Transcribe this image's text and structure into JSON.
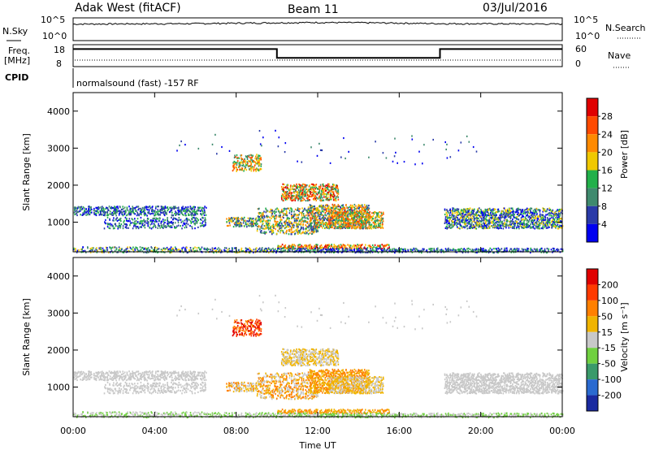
{
  "header": {
    "station": "Adak West (fitACF)",
    "beam": "Beam 11",
    "date": "03/Jul/2016"
  },
  "nsky_panel": {
    "left_label": "N.Sky",
    "right_label": "N.Search",
    "tick_top": "10^5",
    "tick_bottom": "10^0"
  },
  "freq_panel": {
    "left_label_line1": "Freq.",
    "left_label_line2": "[MHz]",
    "left_tick_top": "18",
    "left_tick_bottom": "8",
    "right_label": "Nave",
    "right_tick_top": "60",
    "right_tick_bottom": "0"
  },
  "cpid_panel": {
    "left_label": "CPID",
    "text": "normalsound (fast) -157 RF"
  },
  "x_axis": {
    "label": "Time UT",
    "ticks": [
      "00:00",
      "04:00",
      "08:00",
      "12:00",
      "16:00",
      "20:00",
      "00:00"
    ]
  },
  "power_panel": {
    "ylabel": "Slant Range [km]",
    "yticks": [
      "1000",
      "2000",
      "3000",
      "4000"
    ],
    "colorbar_label": "Power [dB]",
    "colorbar_ticks": [
      "4",
      "8",
      "12",
      "16",
      "20",
      "24",
      "28"
    ],
    "colors": [
      "#0000f0",
      "#2a3aa8",
      "#3f8a6e",
      "#22b04a",
      "#f0c800",
      "#ff8a00",
      "#ff4a00",
      "#e00000"
    ]
  },
  "velocity_panel": {
    "ylabel": "Slant Range [km]",
    "yticks": [
      "1000",
      "2000",
      "3000",
      "4000"
    ],
    "colorbar_label": "Velocity [m s⁻¹]",
    "colorbar_ticks": [
      "200",
      "100",
      "50",
      "15",
      "-15",
      "-50",
      "-100",
      "-200"
    ],
    "colors": [
      "#1a2aa0",
      "#2a6ad0",
      "#3a9a6a",
      "#70d040",
      "#c8c8c8",
      "#f0b400",
      "#ff8000",
      "#ff3a00",
      "#e00000"
    ]
  },
  "chart_data": [
    {
      "type": "line",
      "title": "N.Sky",
      "x_range_hours": [
        0,
        24
      ],
      "y_scale": "log",
      "ylim": [
        1,
        100000
      ],
      "x": [
        0,
        6,
        12,
        14,
        18,
        24
      ],
      "values": [
        4000,
        5000,
        9000,
        8000,
        5000,
        4000
      ]
    },
    {
      "type": "line",
      "title": "Freq. [MHz]",
      "ylim": [
        8,
        18
      ],
      "x": [
        0,
        10,
        10,
        18,
        18,
        24
      ],
      "values": [
        16,
        16,
        12,
        12,
        16,
        16
      ]
    },
    {
      "type": "heatmap",
      "title": "Power [dB]",
      "xlabel": "Time UT",
      "ylabel": "Slant Range [km]",
      "x_range_hours": [
        0,
        24
      ],
      "ylim": [
        200,
        4500
      ],
      "color_range": [
        0,
        30
      ]
    },
    {
      "type": "heatmap",
      "title": "Velocity [m s⁻¹]",
      "xlabel": "Time UT",
      "ylabel": "Slant Range [km]",
      "x_range_hours": [
        0,
        24
      ],
      "ylim": [
        200,
        4500
      ],
      "color_range": [
        -250,
        250
      ]
    }
  ]
}
